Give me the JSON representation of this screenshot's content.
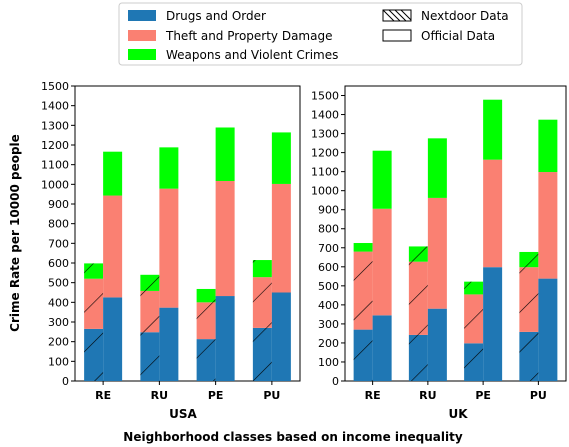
{
  "chart_data": {
    "type": "bar",
    "stacked": true,
    "legend": {
      "placement": "top-center",
      "entries": [
        {
          "key": "drugs",
          "label": "Drugs and Order",
          "color": "#1f77b4"
        },
        {
          "key": "theft",
          "label": "Theft and Property Damage",
          "color": "#fa8072"
        },
        {
          "key": "weapons",
          "label": "Weapons and Violent Crimes",
          "color": "#00ff00"
        },
        {
          "key": "nextdoor",
          "label": "Nextdoor Data",
          "style": "hatched"
        },
        {
          "key": "official",
          "label": "Official Data",
          "style": "plain"
        }
      ]
    },
    "ylabel": "Crime Rate per 10000 people",
    "suptitle": "Neighborhood classes based on income inequality",
    "grid": false,
    "panels": [
      {
        "xlabel": "USA",
        "categories": [
          "RE",
          "RU",
          "PE",
          "PU"
        ],
        "ylim": [
          0,
          1500
        ],
        "yticks": [
          0,
          100,
          200,
          300,
          400,
          500,
          600,
          700,
          800,
          900,
          1000,
          1100,
          1200,
          1300,
          1400,
          1500
        ],
        "series": [
          {
            "name": "Nextdoor Data",
            "drugs": [
              265,
              248,
              213,
              270
            ],
            "theft": [
              255,
              210,
              187,
              258
            ],
            "weapons": [
              78,
              82,
              68,
              87
            ]
          },
          {
            "name": "Official Data",
            "drugs": [
              425,
              373,
              432,
              450
            ],
            "theft": [
              518,
              605,
              585,
              552
            ],
            "weapons": [
              223,
              210,
              272,
              262
            ]
          }
        ]
      },
      {
        "xlabel": "UK",
        "categories": [
          "RE",
          "RU",
          "PE",
          "PU"
        ],
        "ylim": [
          0,
          1550
        ],
        "yticks": [
          0,
          100,
          200,
          300,
          400,
          500,
          600,
          700,
          800,
          900,
          1000,
          1100,
          1200,
          1300,
          1400,
          1500
        ],
        "series": [
          {
            "name": "Nextdoor Data",
            "drugs": [
              270,
              242,
              198,
              258
            ],
            "theft": [
              410,
              385,
              257,
              340
            ],
            "weapons": [
              45,
              80,
              67,
              80
            ]
          },
          {
            "name": "Official Data",
            "drugs": [
              345,
              380,
              598,
              538
            ],
            "theft": [
              560,
              582,
              565,
              560
            ],
            "weapons": [
              305,
              313,
              315,
              275
            ]
          }
        ]
      }
    ]
  }
}
